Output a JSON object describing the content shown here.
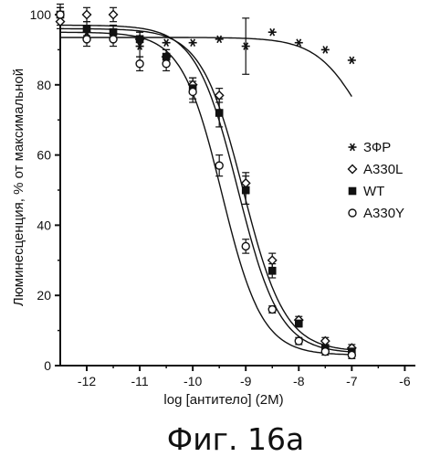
{
  "chart_data": {
    "type": "scatter",
    "title": "",
    "xlabel": "log [антитело] (2M)",
    "ylabel": "Люминесценция, % от максимальной",
    "caption": "Фиг. 16а",
    "xlim": [
      -12.5,
      -5.8
    ],
    "ylim": [
      0,
      100
    ],
    "x_ticks": [
      -12,
      -11,
      -10,
      -9,
      -8,
      -7,
      -6
    ],
    "y_ticks": [
      0,
      20,
      40,
      60,
      80,
      100
    ],
    "grid": false,
    "legend_position": "right",
    "series": [
      {
        "name": "ЗФР",
        "marker": "asterisk",
        "color": "#111111",
        "points": [
          {
            "x": -12.5,
            "y": 100,
            "err": 3
          },
          {
            "x": -12.0,
            "y": 95,
            "err": 0
          },
          {
            "x": -11.5,
            "y": 93,
            "err": 0
          },
          {
            "x": -11.0,
            "y": 91,
            "err": 3
          },
          {
            "x": -10.5,
            "y": 92,
            "err": 0
          },
          {
            "x": -10.0,
            "y": 92,
            "err": 0
          },
          {
            "x": -9.5,
            "y": 93,
            "err": 0
          },
          {
            "x": -9.0,
            "y": 91,
            "err": 8
          },
          {
            "x": -8.5,
            "y": 95,
            "err": 0
          },
          {
            "x": -8.0,
            "y": 92,
            "err": 0
          },
          {
            "x": -7.5,
            "y": 90,
            "err": 0
          },
          {
            "x": -7.0,
            "y": 87,
            "err": 0
          }
        ],
        "fit": {
          "bottom": 50,
          "top": 93.5,
          "logEC50": -6.8,
          "hill": 1.0
        }
      },
      {
        "name": "A330L",
        "marker": "diamond-open",
        "color": "#111111",
        "points": [
          {
            "x": -12.5,
            "y": 98,
            "err": 2
          },
          {
            "x": -12.0,
            "y": 100,
            "err": 2
          },
          {
            "x": -11.5,
            "y": 100,
            "err": 2
          },
          {
            "x": -11.0,
            "y": 93,
            "err": 2
          },
          {
            "x": -10.5,
            "y": 88,
            "err": 2
          },
          {
            "x": -10.0,
            "y": 80,
            "err": 2
          },
          {
            "x": -9.5,
            "y": 77,
            "err": 2
          },
          {
            "x": -9.0,
            "y": 52,
            "err": 3
          },
          {
            "x": -8.5,
            "y": 30,
            "err": 2
          },
          {
            "x": -8.0,
            "y": 13,
            "err": 1
          },
          {
            "x": -7.5,
            "y": 7,
            "err": 1
          },
          {
            "x": -7.0,
            "y": 5,
            "err": 1
          }
        ],
        "fit": {
          "bottom": 4,
          "top": 96,
          "logEC50": -9.05,
          "hill": 1.1
        }
      },
      {
        "name": "WT",
        "marker": "square-filled",
        "color": "#111111",
        "points": [
          {
            "x": -12.5,
            "y": 100,
            "err": 2
          },
          {
            "x": -12.0,
            "y": 96,
            "err": 2
          },
          {
            "x": -11.5,
            "y": 95,
            "err": 2
          },
          {
            "x": -11.0,
            "y": 93,
            "err": 2
          },
          {
            "x": -10.5,
            "y": 88,
            "err": 2
          },
          {
            "x": -10.0,
            "y": 79,
            "err": 3
          },
          {
            "x": -9.5,
            "y": 72,
            "err": 4
          },
          {
            "x": -9.0,
            "y": 50,
            "err": 4
          },
          {
            "x": -8.5,
            "y": 27,
            "err": 2
          },
          {
            "x": -8.0,
            "y": 12,
            "err": 1
          },
          {
            "x": -7.5,
            "y": 5,
            "err": 1
          },
          {
            "x": -7.0,
            "y": 4,
            "err": 1
          }
        ],
        "fit": {
          "bottom": 3.5,
          "top": 97,
          "logEC50": -9.15,
          "hill": 1.1
        }
      },
      {
        "name": "A330Y",
        "marker": "circle-open",
        "color": "#111111",
        "points": [
          {
            "x": -12.5,
            "y": 100,
            "err": 2
          },
          {
            "x": -12.0,
            "y": 93,
            "err": 2
          },
          {
            "x": -11.5,
            "y": 93,
            "err": 2
          },
          {
            "x": -11.0,
            "y": 86,
            "err": 2
          },
          {
            "x": -10.5,
            "y": 86,
            "err": 2
          },
          {
            "x": -10.0,
            "y": 78,
            "err": 3
          },
          {
            "x": -9.5,
            "y": 57,
            "err": 3
          },
          {
            "x": -9.0,
            "y": 34,
            "err": 2
          },
          {
            "x": -8.5,
            "y": 16,
            "err": 1
          },
          {
            "x": -8.0,
            "y": 7,
            "err": 1
          },
          {
            "x": -7.5,
            "y": 4,
            "err": 1
          },
          {
            "x": -7.0,
            "y": 3,
            "err": 1
          }
        ],
        "fit": {
          "bottom": 3,
          "top": 95,
          "logEC50": -9.45,
          "hill": 1.15
        }
      }
    ]
  }
}
